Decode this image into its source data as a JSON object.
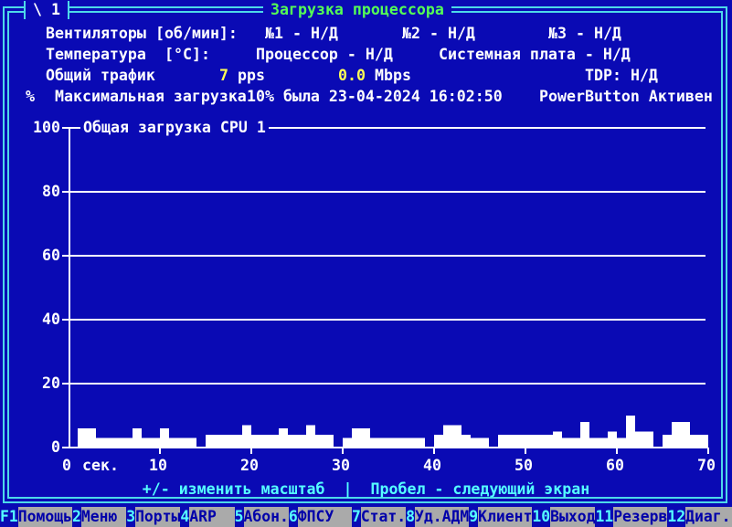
{
  "window": {
    "corner_tag": "\\ 1",
    "title": "Загрузка процессора"
  },
  "info": {
    "fans": {
      "label": "Вентиляторы",
      "unit": "[об/мин]:",
      "fan1": "№1 - Н/Д",
      "fan2": "№2 - Н/Д",
      "fan3": "№3 - Н/Д"
    },
    "temp": {
      "label": "Температура",
      "unit": "[°C]:",
      "cpu": "Процессор - Н/Д",
      "board": "Системная плата - Н/Д"
    },
    "traffic": {
      "label": "Общий трафик",
      "pps_value": "7",
      "pps_unit": "pps",
      "mbps_value": "0.0",
      "mbps_unit": "Mbps",
      "tdp": "TDP: Н/Д"
    },
    "max": {
      "label": "Максимальная загрузка",
      "value": "10% была 23-04-2024 16:02:50",
      "power_status": "PowerButton Активен"
    }
  },
  "chart_data": {
    "type": "area",
    "title": "Общая загрузка CPU 1",
    "ylabel": "%",
    "xlabel": "сек.",
    "ylim": [
      0,
      100
    ],
    "yticks": [
      0,
      20,
      40,
      60,
      80,
      100
    ],
    "xticks": [
      0,
      10,
      20,
      30,
      40,
      50,
      60,
      70
    ],
    "x_step_seconds": 1,
    "series": [
      {
        "name": "Общая загрузка CPU 1",
        "values": [
          0,
          6,
          6,
          3,
          3,
          3,
          3,
          6,
          3,
          3,
          6,
          3,
          3,
          3,
          0,
          4,
          4,
          4,
          4,
          7,
          4,
          4,
          4,
          6,
          4,
          4,
          7,
          4,
          4,
          0,
          3,
          6,
          6,
          3,
          3,
          3,
          3,
          3,
          3,
          0,
          4,
          7,
          7,
          4,
          3,
          3,
          0,
          4,
          4,
          4,
          4,
          4,
          4,
          5,
          3,
          3,
          8,
          3,
          3,
          5,
          3,
          10,
          5,
          5,
          0,
          4,
          8,
          8,
          4,
          4
        ]
      }
    ],
    "grid": true,
    "legend_position": "none"
  },
  "hint": "+/- изменить масштаб  |  Пробел - следующий экран",
  "fkeys": [
    {
      "key": "F1",
      "label": "Помощь"
    },
    {
      "key": "2",
      "label": "Меню "
    },
    {
      "key": "3",
      "label": "Порты"
    },
    {
      "key": "4",
      "label": "ARP  "
    },
    {
      "key": "5",
      "label": "Абон."
    },
    {
      "key": "6",
      "label": "ФПСУ  "
    },
    {
      "key": "7",
      "label": "Стат."
    },
    {
      "key": "8",
      "label": "Уд.АДМ"
    },
    {
      "key": "9",
      "label": "Клиент"
    },
    {
      "key": "10",
      "label": "Выход"
    },
    {
      "key": "11",
      "label": "Резерв"
    },
    {
      "key": "12",
      "label": "Диаг."
    }
  ],
  "colors": {
    "bg": "#0A0AB4",
    "border": "#4DD9E9",
    "hint": "#55FFFF",
    "green": "#55FF55",
    "white": "#FFFFFF",
    "yellow": "#FFFF55",
    "gray": "#AAAAAA",
    "navy": "#0000AA"
  }
}
